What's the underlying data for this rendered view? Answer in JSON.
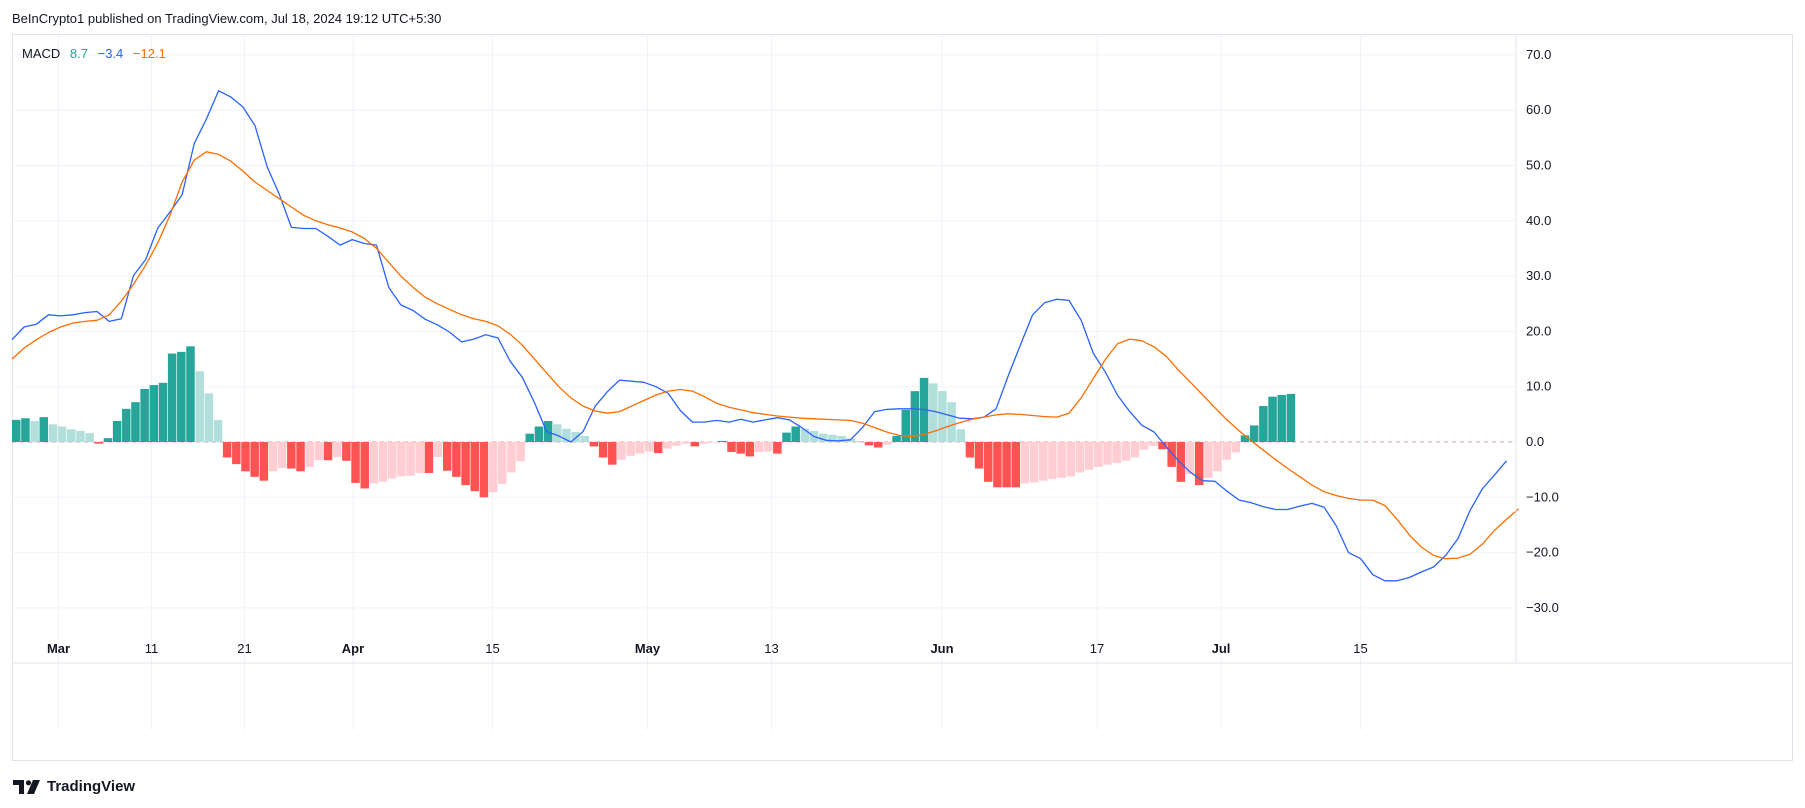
{
  "header": {
    "published": "BeInCrypto1 published on TradingView.com, Jul 18, 2024 19:12 UTC+5:30"
  },
  "legend": {
    "name": "MACD",
    "hist_value": "8.7",
    "macd_value": "−3.4",
    "signal_value": "−12.1",
    "colors": {
      "hist": "#26a69a",
      "macd": "#2962ff",
      "signal": "#ff6d00"
    }
  },
  "footer": {
    "brand": "TradingView",
    "logo_icon": "tradingview-logo-icon"
  },
  "chart_data": {
    "type": "line",
    "title": "MACD",
    "xlabel": "",
    "ylabel": "",
    "ylim": [
      -35,
      74
    ],
    "grid": true,
    "y_ticks": [
      "70.0",
      "60.0",
      "50.0",
      "40.0",
      "30.0",
      "20.0",
      "10.0",
      "0.0",
      "−10.0",
      "−20.0",
      "−30.0"
    ],
    "y_tick_values": [
      70,
      60,
      50,
      40,
      30,
      20,
      10,
      0,
      -10,
      -20,
      -30
    ],
    "x_ticks": [
      {
        "label": "Mar",
        "index": 3
      },
      {
        "label": "11",
        "index": 9
      },
      {
        "label": "21",
        "index": 15
      },
      {
        "label": "Apr",
        "index": 22
      },
      {
        "label": "15",
        "index": 31
      },
      {
        "label": "May",
        "index": 41
      },
      {
        "label": "13",
        "index": 49
      },
      {
        "label": "Jun",
        "index": 60
      },
      {
        "label": "17",
        "index": 70
      },
      {
        "label": "Jul",
        "index": 78
      },
      {
        "label": "15",
        "index": 87
      }
    ],
    "n_slots": 100,
    "series": [
      {
        "name": "MACD",
        "color": "#2962ff",
        "values": [
          18.5,
          20.8,
          21.3,
          23.0,
          22.8,
          23.0,
          23.4,
          23.6,
          21.8,
          22.3,
          30.1,
          33.0,
          38.7,
          41.6,
          44.7,
          54.0,
          58.4,
          63.5,
          62.4,
          60.6,
          57.2,
          49.8,
          44.8,
          38.8,
          38.6,
          38.6,
          37.2,
          35.6,
          36.6,
          35.9,
          35.6,
          28.0,
          24.8,
          23.8,
          22.2,
          21.2,
          19.9,
          18.1,
          18.6,
          19.4,
          18.8,
          14.6,
          11.7,
          7.1,
          1.9,
          1.1,
          0.0,
          1.9,
          6.5,
          9.1,
          11.2,
          11.0,
          10.8,
          10.0,
          8.8,
          5.7,
          3.6,
          3.6,
          3.9,
          3.6,
          4.1,
          3.6,
          4.0,
          4.4,
          4.0,
          2.6,
          1.0,
          0.3,
          0.2,
          0.4,
          2.6,
          5.5,
          5.9,
          6.0,
          6.0,
          5.9,
          5.5,
          4.9,
          4.3,
          4.2,
          4.5,
          6.0,
          12.0,
          17.6,
          23.0,
          25.2,
          25.8,
          25.6,
          22.0,
          16.0,
          12.6,
          8.4,
          5.5,
          3.0,
          1.8,
          -0.9,
          -3.4,
          -5.5,
          -7.0,
          -7.1,
          -8.9,
          -10.5,
          -11.0,
          -11.7,
          -12.2,
          -12.2,
          -11.6,
          -11.1,
          -11.8,
          -15.2,
          -20.0,
          -21.1,
          -24.0,
          -25.1,
          -25.1,
          -24.5,
          -23.5,
          -22.6,
          -20.5,
          -17.5,
          -12.4,
          -8.5,
          -6.0,
          -3.4
        ],
        "x_start": 0.0,
        "x_step": 0.8
      },
      {
        "name": "Signal",
        "color": "#ff6d00",
        "values": [
          15.0,
          17.0,
          18.5,
          19.8,
          20.8,
          21.5,
          21.8,
          22.0,
          23.0,
          25.5,
          28.5,
          32.0,
          36.0,
          41.0,
          47.0,
          51.0,
          52.5,
          52.0,
          50.8,
          49.0,
          47.0,
          45.5,
          44.0,
          42.5,
          41.0,
          40.0,
          39.3,
          38.7,
          38.0,
          36.8,
          35.0,
          32.5,
          30.0,
          28.0,
          26.2,
          25.0,
          24.0,
          23.0,
          22.3,
          21.8,
          21.0,
          19.5,
          17.5,
          15.0,
          12.5,
          10.0,
          8.0,
          6.5,
          5.6,
          5.2,
          5.5,
          6.5,
          7.5,
          8.5,
          9.2,
          9.5,
          9.2,
          8.2,
          7.0,
          6.3,
          5.8,
          5.3,
          5.0,
          4.7,
          4.5,
          4.3,
          4.2,
          4.1,
          4.0,
          3.9,
          3.4,
          2.6,
          1.8,
          1.2,
          1.0,
          1.3,
          2.0,
          2.8,
          3.5,
          4.1,
          4.5,
          4.9,
          5.1,
          5.0,
          4.8,
          4.6,
          4.5,
          5.2,
          8.0,
          11.5,
          15.0,
          17.8,
          18.6,
          18.3,
          17.2,
          15.5,
          13.0,
          10.8,
          8.5,
          6.2,
          4.0,
          2.0,
          0.2,
          -1.5,
          -3.2,
          -4.8,
          -6.3,
          -7.8,
          -9.0,
          -9.7,
          -10.2,
          -10.5,
          -10.5,
          -11.5,
          -14.0,
          -16.8,
          -19.0,
          -20.5,
          -21.1,
          -21.0,
          -20.3,
          -18.5,
          -16.0,
          -14.0,
          -12.1
        ],
        "x_start": 0.0,
        "x_step": 0.8
      },
      {
        "name": "Histogram",
        "type": "bar",
        "values": [
          4.0,
          4.3,
          3.8,
          4.5,
          3.2,
          2.8,
          2.3,
          2.0,
          1.6,
          -0.3,
          0.7,
          3.8,
          6.0,
          7.2,
          9.6,
          10.3,
          10.7,
          16.0,
          16.3,
          17.3,
          12.8,
          8.8,
          4.0,
          -2.8,
          -4.0,
          -5.3,
          -6.3,
          -7.0,
          -5.3,
          -4.7,
          -4.8,
          -5.3,
          -4.5,
          -3.3,
          -3.3,
          -2.7,
          -3.4,
          -7.4,
          -8.4,
          -7.5,
          -7.2,
          -6.6,
          -6.2,
          -6.1,
          -5.6,
          -5.6,
          -2.7,
          -5.2,
          -6.3,
          -7.8,
          -8.9,
          -10.0,
          -9.1,
          -7.6,
          -5.5,
          -3.5,
          1.5,
          2.8,
          3.8,
          3.2,
          2.4,
          1.8,
          1.1,
          -0.8,
          -2.8,
          -4.1,
          -3.2,
          -2.5,
          -2.1,
          -1.7,
          -2.0,
          -1.2,
          -0.7,
          -0.3,
          -0.8,
          -0.3,
          -0.1,
          0.2,
          -1.8,
          -2.1,
          -2.6,
          -1.8,
          -1.7,
          -2.1,
          1.7,
          2.8,
          2.4,
          2.0,
          1.5,
          1.3,
          1.1,
          0.6,
          0.2,
          -0.6,
          -1.0,
          -0.5,
          1.1,
          5.8,
          9.2,
          11.6,
          10.6,
          9.2,
          7.2,
          2.3,
          -2.8,
          -4.8,
          -7.2,
          -8.2,
          -8.2,
          -8.2,
          -7.5,
          -7.3,
          -7.0,
          -6.7,
          -6.5,
          -6.2,
          -5.5,
          -5.0,
          -4.5,
          -4.1,
          -3.8,
          -3.4,
          -2.8,
          -1.4,
          -0.7,
          -1.3,
          -4.5,
          -7.2,
          -5.8,
          -7.8,
          -6.5,
          -5.3,
          -3.2,
          -1.9,
          1.2,
          3.0,
          6.5,
          8.2,
          8.5,
          8.7
        ],
        "x_start": 0.0,
        "x_step": 0.7
      }
    ]
  }
}
